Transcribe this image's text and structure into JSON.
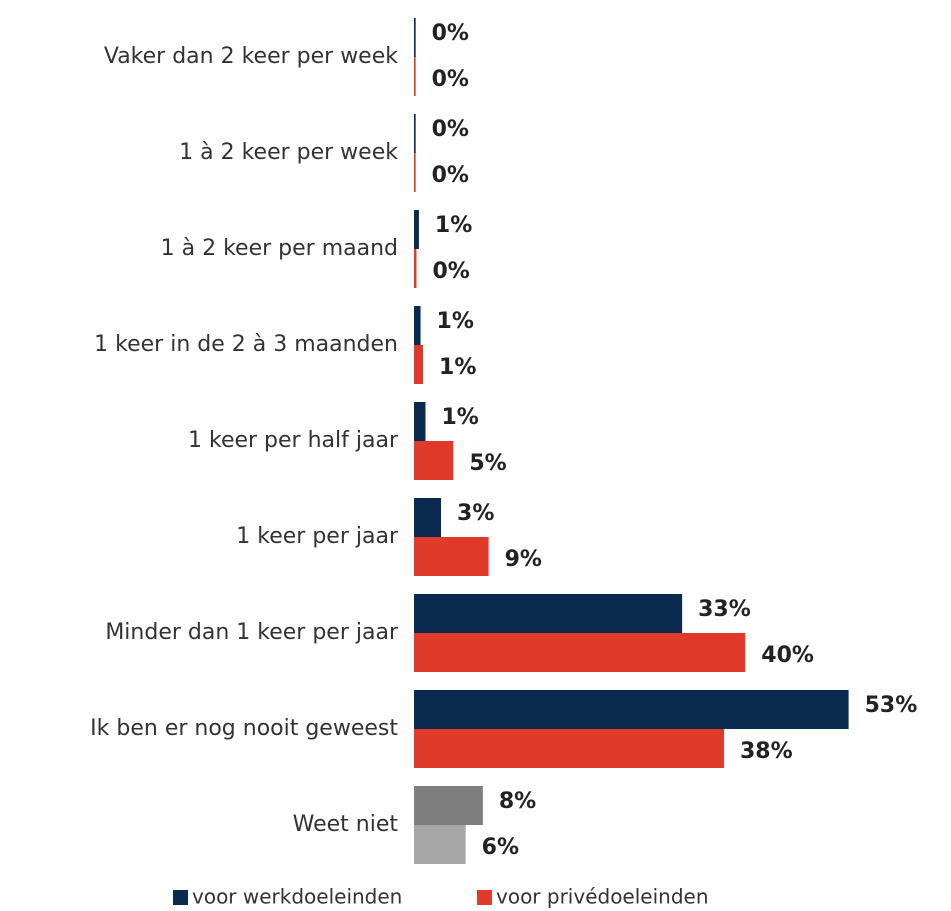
{
  "chart_data": {
    "type": "bar",
    "orientation": "horizontal",
    "categories": [
      "Vaker dan 2 keer per week",
      "1 à 2 keer per week",
      "1 à 2 keer per maand",
      "1 keer in de 2 à 3 maanden",
      "1 keer per half jaar",
      "1 keer per jaar",
      "Minder dan 1 keer per jaar",
      "Ik ben er nog nooit geweest",
      "Weet niet"
    ],
    "series": [
      {
        "name": "voor werkdoeleinden",
        "color": "#0b2a4f",
        "colors": [
          "#0b2a4f",
          "#0b2a4f",
          "#0b2a4f",
          "#0b2a4f",
          "#0b2a4f",
          "#0b2a4f",
          "#0b2a4f",
          "#0b2a4f",
          "#7f7f7f"
        ],
        "values": [
          0.2,
          0.2,
          0.6,
          0.8,
          1.4,
          3.3,
          32.7,
          53,
          8.4
        ],
        "value_labels": [
          "0%",
          "0%",
          "1%",
          "1%",
          "1%",
          "3%",
          "33%",
          "53%",
          "8%"
        ]
      },
      {
        "name": "voor privédoeleinden",
        "color": "#e03a2a",
        "colors": [
          "#e03a2a",
          "#e03a2a",
          "#e03a2a",
          "#e03a2a",
          "#e03a2a",
          "#e03a2a",
          "#e03a2a",
          "#e03a2a",
          "#a6a6a6"
        ],
        "values": [
          0.2,
          0.2,
          0.3,
          1.1,
          4.8,
          9.1,
          40.4,
          37.8,
          6.3
        ],
        "value_labels": [
          "0%",
          "0%",
          "0%",
          "1%",
          "5%",
          "9%",
          "40%",
          "38%",
          "6%"
        ]
      }
    ],
    "xlim": [
      0,
      60
    ],
    "legend": "bottom"
  }
}
